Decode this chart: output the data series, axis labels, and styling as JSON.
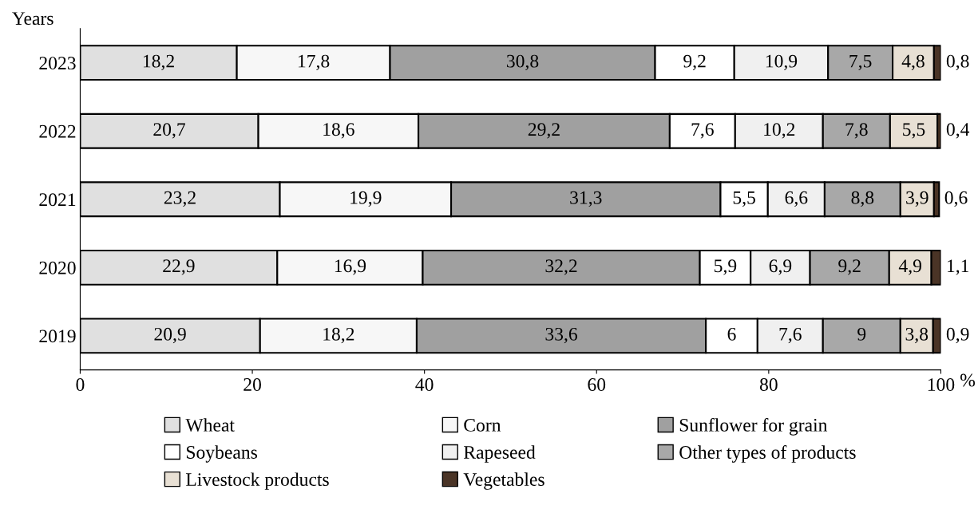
{
  "chart_data": {
    "type": "bar",
    "orientation": "horizontal",
    "stacked": true,
    "ylabel": "Years",
    "xlabel": "%",
    "categories": [
      "2023",
      "2022",
      "2021",
      "2020",
      "2019"
    ],
    "xlim": [
      0,
      100
    ],
    "xticks": [
      0,
      20,
      40,
      60,
      80,
      100
    ],
    "grid": false,
    "legend": "bottom",
    "series": [
      {
        "name": "Wheat",
        "color": "#e0e0e0",
        "values": [
          18.2,
          20.7,
          23.2,
          22.9,
          20.9
        ],
        "value_labels": [
          "18,2",
          "20,7",
          "23,2",
          "22,9",
          "20,9"
        ]
      },
      {
        "name": "Corn",
        "color": "#f7f7f7",
        "values": [
          17.8,
          18.6,
          19.9,
          16.9,
          18.2
        ],
        "value_labels": [
          "17,8",
          "18,6",
          "19,9",
          "16,9",
          "18,2"
        ]
      },
      {
        "name": "Sunflower for grain",
        "color": "#a0a0a0",
        "values": [
          30.8,
          29.2,
          31.3,
          32.2,
          33.6
        ],
        "value_labels": [
          "30,8",
          "29,2",
          "31,3",
          "32,2",
          "33,6"
        ]
      },
      {
        "name": "Soybeans",
        "color": "#ffffff",
        "values": [
          9.2,
          7.6,
          5.5,
          5.9,
          6
        ],
        "value_labels": [
          "9,2",
          "7,6",
          "5,5",
          "5,9",
          "6"
        ]
      },
      {
        "name": "Rapeseed",
        "color": "#f0f0f0",
        "values": [
          10.9,
          10.2,
          6.6,
          6.9,
          7.6
        ],
        "value_labels": [
          "10,9",
          "10,2",
          "6,6",
          "6,9",
          "7,6"
        ]
      },
      {
        "name": "Other types of products",
        "color": "#a8a8a8",
        "values": [
          7.5,
          7.8,
          8.8,
          9.2,
          9
        ],
        "value_labels": [
          "7,5",
          "7,8",
          "8,8",
          "9,2",
          "9"
        ]
      },
      {
        "name": "Livestock products",
        "color": "#e8e0d4",
        "values": [
          4.8,
          5.5,
          3.9,
          4.9,
          3.8
        ],
        "value_labels": [
          "4,8",
          "5,5",
          "3,9",
          "4,9",
          "3,8"
        ]
      },
      {
        "name": "Vegetables",
        "color": "#4a3426",
        "values": [
          0.8,
          0.4,
          0.6,
          1.1,
          0.9
        ],
        "value_labels": [
          "0,8",
          "0,4",
          "0,6",
          "1,1",
          "0,9"
        ]
      }
    ]
  }
}
